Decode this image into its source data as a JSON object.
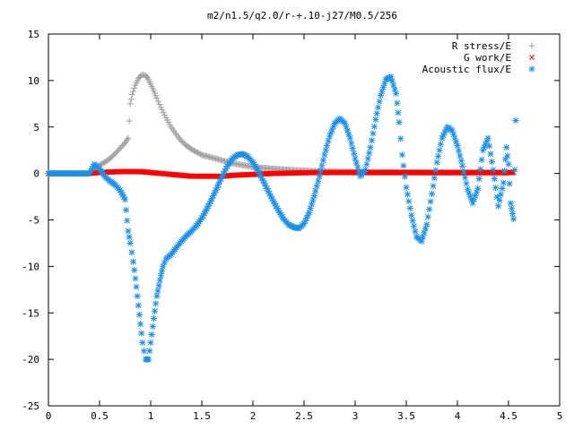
{
  "chart_data": {
    "type": "scatter",
    "title": "m2/n1.5/q2.0/r-+.10-j27/M0.5/256",
    "xlim": [
      0,
      5
    ],
    "ylim": [
      -25,
      15
    ],
    "x_ticks": [
      "0",
      "0.5",
      "1",
      "1.5",
      "2",
      "2.5",
      "3",
      "3.5",
      "4",
      "4.5",
      "5"
    ],
    "y_ticks": [
      "15",
      "10",
      "5",
      "0",
      "-5",
      "-10",
      "-15",
      "-20",
      "-25"
    ],
    "legend_position": "top-right",
    "grid": false,
    "series": [
      {
        "name": "R stress/E",
        "marker": "plus",
        "color": "#a0a0a0",
        "points": [
          [
            0.0,
            0.0
          ],
          [
            0.1,
            0.0
          ],
          [
            0.2,
            0.0
          ],
          [
            0.3,
            0.0
          ],
          [
            0.4,
            0.0
          ],
          [
            0.5,
            0.9
          ],
          [
            0.55,
            1.2
          ],
          [
            0.6,
            1.6
          ],
          [
            0.65,
            2.1
          ],
          [
            0.7,
            2.7
          ],
          [
            0.75,
            3.3
          ],
          [
            0.78,
            3.8
          ],
          [
            0.8,
            7.5
          ],
          [
            0.82,
            8.5
          ],
          [
            0.85,
            9.5
          ],
          [
            0.88,
            10.2
          ],
          [
            0.91,
            10.6
          ],
          [
            0.94,
            10.6
          ],
          [
            0.97,
            10.3
          ],
          [
            1.0,
            9.6
          ],
          [
            1.03,
            8.9
          ],
          [
            1.06,
            8.1
          ],
          [
            1.1,
            7.1
          ],
          [
            1.15,
            6.0
          ],
          [
            1.2,
            5.0
          ],
          [
            1.25,
            4.2
          ],
          [
            1.3,
            3.5
          ],
          [
            1.35,
            3.0
          ],
          [
            1.4,
            2.6
          ],
          [
            1.45,
            2.3
          ],
          [
            1.5,
            2.0
          ],
          [
            1.6,
            1.7
          ],
          [
            1.7,
            1.4
          ],
          [
            1.8,
            1.1
          ],
          [
            1.9,
            0.9
          ],
          [
            2.0,
            0.7
          ],
          [
            2.2,
            0.5
          ],
          [
            2.4,
            0.35
          ],
          [
            2.6,
            0.25
          ],
          [
            2.8,
            0.2
          ],
          [
            3.0,
            0.15
          ],
          [
            3.3,
            0.12
          ],
          [
            3.6,
            0.1
          ],
          [
            3.9,
            0.08
          ],
          [
            4.2,
            0.06
          ],
          [
            4.5,
            0.05
          ]
        ]
      },
      {
        "name": "G work/E",
        "marker": "cross",
        "color": "#ff0000",
        "points": [
          [
            0.0,
            0.0
          ],
          [
            0.1,
            0.0
          ],
          [
            0.2,
            0.0
          ],
          [
            0.3,
            0.0
          ],
          [
            0.4,
            0.0
          ],
          [
            0.5,
            0.1
          ],
          [
            0.6,
            0.15
          ],
          [
            0.7,
            0.2
          ],
          [
            0.8,
            0.2
          ],
          [
            0.9,
            0.2
          ],
          [
            1.0,
            0.1
          ],
          [
            1.1,
            0.0
          ],
          [
            1.2,
            -0.1
          ],
          [
            1.3,
            -0.2
          ],
          [
            1.4,
            -0.3
          ],
          [
            1.5,
            -0.3
          ],
          [
            1.6,
            -0.3
          ],
          [
            1.7,
            -0.3
          ],
          [
            1.8,
            -0.2
          ],
          [
            1.9,
            -0.15
          ],
          [
            2.0,
            -0.1
          ],
          [
            2.2,
            0.0
          ],
          [
            2.4,
            0.05
          ],
          [
            2.6,
            0.1
          ],
          [
            2.8,
            0.1
          ],
          [
            3.0,
            0.1
          ],
          [
            3.2,
            0.1
          ],
          [
            3.4,
            0.1
          ],
          [
            3.6,
            0.1
          ],
          [
            3.8,
            0.1
          ],
          [
            4.0,
            0.1
          ],
          [
            4.2,
            0.1
          ],
          [
            4.4,
            0.1
          ],
          [
            4.55,
            0.1
          ]
        ]
      },
      {
        "name": "Acoustic flux/E",
        "marker": "star",
        "color": "#1e90e6",
        "points": [
          [
            0.0,
            0.0
          ],
          [
            0.1,
            0.0
          ],
          [
            0.2,
            0.0
          ],
          [
            0.3,
            0.0
          ],
          [
            0.4,
            0.0
          ],
          [
            0.45,
            1.0
          ],
          [
            0.5,
            0.5
          ],
          [
            0.55,
            -0.3
          ],
          [
            0.6,
            -0.8
          ],
          [
            0.65,
            -1.2
          ],
          [
            0.7,
            -1.8
          ],
          [
            0.75,
            -2.8
          ],
          [
            0.78,
            -6.2
          ],
          [
            0.8,
            -7.5
          ],
          [
            0.83,
            -9.5
          ],
          [
            0.86,
            -12.2
          ],
          [
            0.89,
            -15.2
          ],
          [
            0.92,
            -18.2
          ],
          [
            0.95,
            -20.0
          ],
          [
            0.98,
            -20.0
          ],
          [
            1.0,
            -18.2
          ],
          [
            1.03,
            -15.6
          ],
          [
            1.06,
            -13.2
          ],
          [
            1.09,
            -11.5
          ],
          [
            1.12,
            -10.0
          ],
          [
            1.15,
            -9.2
          ],
          [
            1.2,
            -8.7
          ],
          [
            1.25,
            -8.0
          ],
          [
            1.3,
            -7.3
          ],
          [
            1.35,
            -6.7
          ],
          [
            1.4,
            -6.2
          ],
          [
            1.45,
            -5.6
          ],
          [
            1.5,
            -4.8
          ],
          [
            1.55,
            -3.8
          ],
          [
            1.6,
            -2.7
          ],
          [
            1.65,
            -1.5
          ],
          [
            1.7,
            -0.3
          ],
          [
            1.75,
            0.8
          ],
          [
            1.8,
            1.6
          ],
          [
            1.85,
            2.0
          ],
          [
            1.9,
            2.1
          ],
          [
            1.95,
            1.8
          ],
          [
            2.0,
            1.2
          ],
          [
            2.05,
            0.3
          ],
          [
            2.1,
            -0.8
          ],
          [
            2.15,
            -1.9
          ],
          [
            2.2,
            -3.0
          ],
          [
            2.25,
            -4.0
          ],
          [
            2.3,
            -4.9
          ],
          [
            2.35,
            -5.5
          ],
          [
            2.4,
            -5.8
          ],
          [
            2.45,
            -5.9
          ],
          [
            2.5,
            -5.4
          ],
          [
            2.55,
            -4.2
          ],
          [
            2.6,
            -2.4
          ],
          [
            2.65,
            -0.3
          ],
          [
            2.7,
            2.0
          ],
          [
            2.75,
            4.0
          ],
          [
            2.8,
            5.4
          ],
          [
            2.85,
            5.9
          ],
          [
            2.9,
            5.4
          ],
          [
            2.95,
            3.8
          ],
          [
            3.0,
            1.6
          ],
          [
            3.05,
            -0.3
          ],
          [
            3.1,
            0.4
          ],
          [
            3.15,
            2.8
          ],
          [
            3.2,
            5.8
          ],
          [
            3.25,
            8.4
          ],
          [
            3.3,
            10.1
          ],
          [
            3.35,
            10.4
          ],
          [
            3.4,
            8.6
          ],
          [
            3.43,
            5.5
          ],
          [
            3.46,
            2.0
          ],
          [
            3.5,
            -1.5
          ],
          [
            3.55,
            -4.5
          ],
          [
            3.6,
            -6.8
          ],
          [
            3.65,
            -7.3
          ],
          [
            3.7,
            -5.5
          ],
          [
            3.75,
            -2.2
          ],
          [
            3.8,
            1.2
          ],
          [
            3.85,
            3.8
          ],
          [
            3.9,
            5.0
          ],
          [
            3.95,
            4.6
          ],
          [
            4.0,
            3.0
          ],
          [
            4.05,
            0.8
          ],
          [
            4.1,
            -1.7
          ],
          [
            4.15,
            -3.2
          ],
          [
            4.2,
            -1.6
          ],
          [
            4.25,
            2.5
          ],
          [
            4.3,
            3.8
          ],
          [
            4.35,
            0.4
          ],
          [
            4.4,
            -3.5
          ],
          [
            4.45,
            -1.0
          ],
          [
            4.48,
            2.8
          ],
          [
            4.5,
            1.0
          ],
          [
            4.52,
            -3.2
          ],
          [
            4.55,
            -4.9
          ],
          [
            4.57,
            5.7
          ]
        ]
      }
    ]
  }
}
